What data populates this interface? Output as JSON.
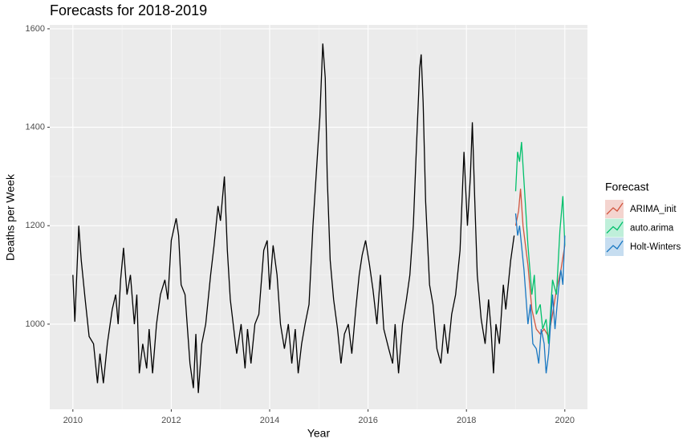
{
  "chart_data": {
    "type": "line",
    "title": "Forecasts for 2018-2019",
    "x_label": "Year",
    "y_label": "Deaths per Week",
    "legend_title": "Forecast",
    "legend_position": "right",
    "grid": true,
    "xlim": [
      2009.53,
      2020.46
    ],
    "ylim": [
      827,
      1608
    ],
    "xticks": [
      2010,
      2012,
      2014,
      2016,
      2018,
      2020
    ],
    "yticks": [
      1000,
      1200,
      1400,
      1600
    ],
    "history": {
      "color": "#000000",
      "x": [
        2010.0,
        2010.04,
        2010.12,
        2010.17,
        2010.25,
        2010.33,
        2010.42,
        2010.5,
        2010.55,
        2010.62,
        2010.7,
        2010.8,
        2010.87,
        2010.92,
        2010.97,
        2011.03,
        2011.1,
        2011.17,
        2011.25,
        2011.3,
        2011.35,
        2011.42,
        2011.5,
        2011.55,
        2011.62,
        2011.7,
        2011.78,
        2011.87,
        2011.93,
        2012.0,
        2012.1,
        2012.15,
        2012.2,
        2012.28,
        2012.38,
        2012.45,
        2012.5,
        2012.55,
        2012.62,
        2012.7,
        2012.8,
        2012.87,
        2012.95,
        2013.0,
        2013.08,
        2013.14,
        2013.2,
        2013.33,
        2013.42,
        2013.5,
        2013.55,
        2013.62,
        2013.7,
        2013.78,
        2013.88,
        2013.95,
        2014.0,
        2014.07,
        2014.15,
        2014.22,
        2014.3,
        2014.38,
        2014.45,
        2014.52,
        2014.58,
        2014.65,
        2014.72,
        2014.8,
        2014.88,
        2014.95,
        2015.02,
        2015.08,
        2015.13,
        2015.17,
        2015.23,
        2015.3,
        2015.38,
        2015.45,
        2015.52,
        2015.6,
        2015.67,
        2015.75,
        2015.82,
        2015.88,
        2015.95,
        2016.03,
        2016.1,
        2016.18,
        2016.25,
        2016.32,
        2016.42,
        2016.5,
        2016.55,
        2016.62,
        2016.7,
        2016.78,
        2016.85,
        2016.92,
        2017.0,
        2017.05,
        2017.08,
        2017.12,
        2017.17,
        2017.25,
        2017.32,
        2017.4,
        2017.48,
        2017.55,
        2017.62,
        2017.7,
        2017.78,
        2017.87,
        2017.95,
        2018.02,
        2018.08,
        2018.12,
        2018.17,
        2018.22,
        2018.3,
        2018.38,
        2018.45,
        2018.5,
        2018.55,
        2018.6,
        2018.67,
        2018.75,
        2018.8,
        2018.9,
        2018.97
      ],
      "values": [
        1100,
        1005,
        1200,
        1130,
        1050,
        975,
        960,
        880,
        940,
        880,
        960,
        1030,
        1060,
        1000,
        1090,
        1155,
        1060,
        1100,
        1000,
        1060,
        900,
        960,
        910,
        990,
        900,
        1000,
        1060,
        1090,
        1050,
        1170,
        1215,
        1180,
        1080,
        1060,
        920,
        870,
        980,
        860,
        960,
        1000,
        1100,
        1160,
        1240,
        1210,
        1300,
        1150,
        1050,
        940,
        1000,
        910,
        990,
        920,
        1000,
        1020,
        1150,
        1170,
        1070,
        1160,
        1100,
        1000,
        950,
        1000,
        920,
        990,
        900,
        960,
        1000,
        1040,
        1200,
        1310,
        1420,
        1570,
        1500,
        1300,
        1130,
        1050,
        990,
        920,
        980,
        1000,
        940,
        1030,
        1100,
        1140,
        1170,
        1120,
        1070,
        1000,
        1100,
        990,
        950,
        920,
        1000,
        900,
        1000,
        1050,
        1100,
        1200,
        1400,
        1520,
        1548,
        1450,
        1250,
        1080,
        1040,
        950,
        920,
        1000,
        940,
        1020,
        1060,
        1150,
        1350,
        1200,
        1300,
        1410,
        1250,
        1100,
        1010,
        960,
        1050,
        990,
        900,
        1000,
        960,
        1080,
        1030,
        1130,
        1180
      ]
    },
    "series": [
      {
        "name": "ARIMA_init",
        "color": "#d2553f",
        "x": [
          2019.0,
          2019.06,
          2019.1,
          2019.15,
          2019.25,
          2019.33,
          2019.42,
          2019.5,
          2019.58,
          2019.67,
          2019.75,
          2019.83,
          2019.92,
          2020.0
        ],
        "values": [
          1200,
          1230,
          1275,
          1200,
          1120,
          1030,
          990,
          980,
          990,
          975,
          1020,
          1070,
          1110,
          1160
        ]
      },
      {
        "name": "auto.arima",
        "color": "#00c06b",
        "x": [
          2019.0,
          2019.04,
          2019.08,
          2019.12,
          2019.17,
          2019.25,
          2019.33,
          2019.38,
          2019.42,
          2019.5,
          2019.55,
          2019.62,
          2019.67,
          2019.75,
          2019.83,
          2019.9,
          2019.96,
          2020.0
        ],
        "values": [
          1270,
          1350,
          1330,
          1370,
          1290,
          1160,
          1060,
          1100,
          1020,
          1040,
          990,
          1010,
          960,
          1090,
          1060,
          1190,
          1260,
          1160
        ]
      },
      {
        "name": "Holt-Winters",
        "color": "#1a78c2",
        "x": [
          2019.0,
          2019.04,
          2019.08,
          2019.12,
          2019.17,
          2019.25,
          2019.3,
          2019.35,
          2019.42,
          2019.47,
          2019.52,
          2019.58,
          2019.62,
          2019.67,
          2019.75,
          2019.8,
          2019.87,
          2019.92,
          2019.96,
          2020.0
        ],
        "values": [
          1225,
          1180,
          1200,
          1160,
          1110,
          1000,
          1040,
          960,
          950,
          920,
          990,
          960,
          900,
          940,
          1060,
          990,
          1070,
          1110,
          1080,
          1180
        ]
      }
    ]
  }
}
